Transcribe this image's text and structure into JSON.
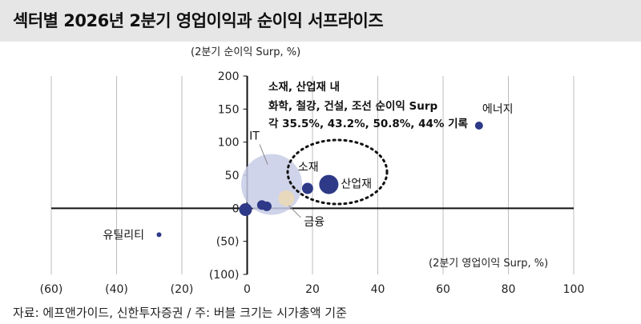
{
  "header": {
    "title": "섹터별 2026년 2분기 영업이익과 순이익 서프라이즈"
  },
  "footer": {
    "source": "자료: 에프앤가이드, 신한투자증권 / 주: 버블 크기는 시가총액 기준"
  },
  "chart_data": {
    "type": "scatter",
    "xlabel": "(2분기 영업이익 Surp, %)",
    "ylabel": "(2분기 순이익 Surp, %)",
    "xlim": [
      -60,
      100
    ],
    "ylim": [
      -100,
      200
    ],
    "x_ticks": [
      -60,
      -40,
      -20,
      0,
      20,
      40,
      60,
      80,
      100
    ],
    "x_tick_labels": [
      "(60)",
      "(40)",
      "(20)",
      "0",
      "20",
      "40",
      "60",
      "80",
      "100"
    ],
    "y_ticks": [
      200,
      150,
      100,
      50,
      0,
      -50,
      -100
    ],
    "y_tick_labels": [
      "200",
      "150",
      "100",
      "50",
      "0",
      "(50)",
      "(100)"
    ],
    "grid": "vertical",
    "bubble_size_basis": "시가총액",
    "colors": {
      "default": "#2e3a87",
      "IT": "#c8cce6",
      "금융": "#ead9b8"
    },
    "points": [
      {
        "label": "에너지",
        "x": 71,
        "y": 125,
        "size": 5
      },
      {
        "label": "산업재",
        "x": 25,
        "y": 36,
        "size": 12
      },
      {
        "label": "소재",
        "x": 18.5,
        "y": 30,
        "size": 7
      },
      {
        "label": "IT",
        "x": 7.5,
        "y": 36,
        "size": 38
      },
      {
        "label": "금융",
        "x": 12,
        "y": 15,
        "size": 10
      },
      {
        "label": "",
        "x": 4.5,
        "y": 5,
        "size": 6
      },
      {
        "label": "",
        "x": 6,
        "y": 3,
        "size": 6
      },
      {
        "label": "",
        "x": -0.5,
        "y": -2,
        "size": 8
      },
      {
        "label": "유틸리티",
        "x": -27,
        "y": -40,
        "size": 3
      }
    ],
    "annotation": {
      "lines": [
        "소재, 산업재 내",
        "화학, 철강, 건설, 조선 순이익 Surp",
        "각 35.5%, 43.2%, 50.8%, 44% 기록"
      ]
    }
  }
}
